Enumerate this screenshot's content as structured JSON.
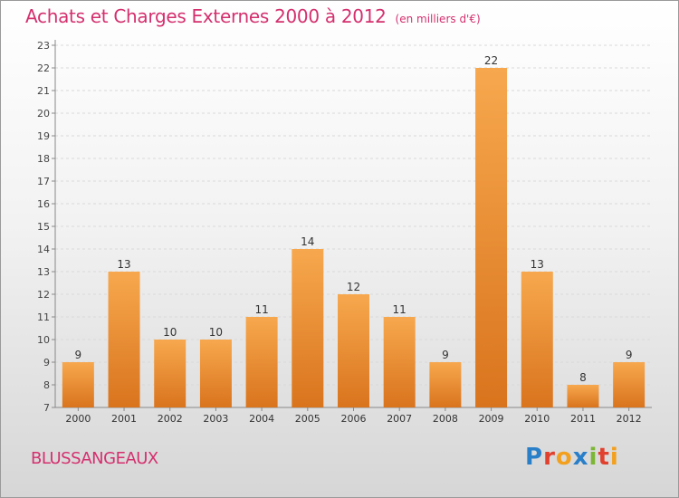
{
  "chart_data": {
    "type": "bar",
    "title": "Achats et Charges Externes 2000 à 2012",
    "subtitle": "(en milliers d'€)",
    "categories": [
      "2000",
      "2001",
      "2002",
      "2003",
      "2004",
      "2005",
      "2006",
      "2007",
      "2008",
      "2009",
      "2010",
      "2011",
      "2012"
    ],
    "values": [
      9,
      13,
      10,
      10,
      11,
      14,
      12,
      11,
      9,
      22,
      13,
      8,
      9
    ],
    "ylim": [
      7,
      23
    ],
    "yticks": [
      7,
      8,
      9,
      10,
      11,
      12,
      13,
      14,
      15,
      16,
      17,
      18,
      19,
      20,
      21,
      22,
      23
    ],
    "grid": true,
    "bar_color": "#f0943a"
  },
  "commune": "BLUSSANGEAUX",
  "logo_text": "Proxiti",
  "colors": {
    "title": "#d4306e",
    "bar": "#f0943a"
  }
}
